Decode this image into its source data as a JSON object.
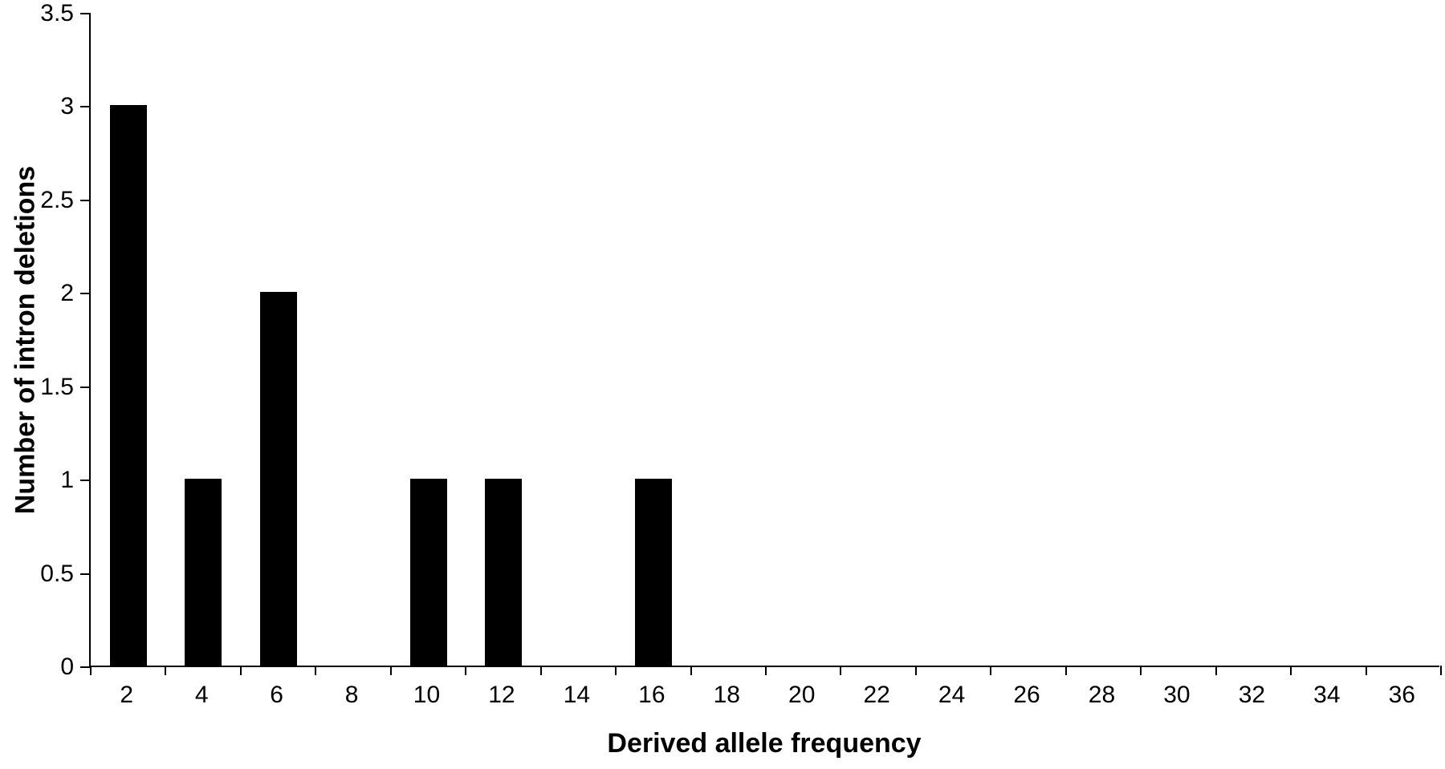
{
  "chart_data": {
    "type": "bar",
    "title": "",
    "xlabel": "Derived allele frequency",
    "ylabel": "Number of intron deletions",
    "categories": [
      2,
      4,
      6,
      8,
      10,
      12,
      14,
      16,
      18,
      20,
      22,
      24,
      26,
      28,
      30,
      32,
      34,
      36
    ],
    "values": [
      3,
      1,
      2,
      0,
      1,
      1,
      0,
      1,
      0,
      0,
      0,
      0,
      0,
      0,
      0,
      0,
      0,
      0
    ],
    "ylim": [
      0,
      3.5
    ],
    "ytick_step": 0.5,
    "ytick_labels": [
      "0",
      "0.5",
      "1",
      "1.5",
      "2",
      "2.5",
      "3",
      "3.5"
    ],
    "bar_color": "#000000",
    "axis_color": "#000000",
    "background_color": "#ffffff",
    "grid": false,
    "legend": false
  }
}
